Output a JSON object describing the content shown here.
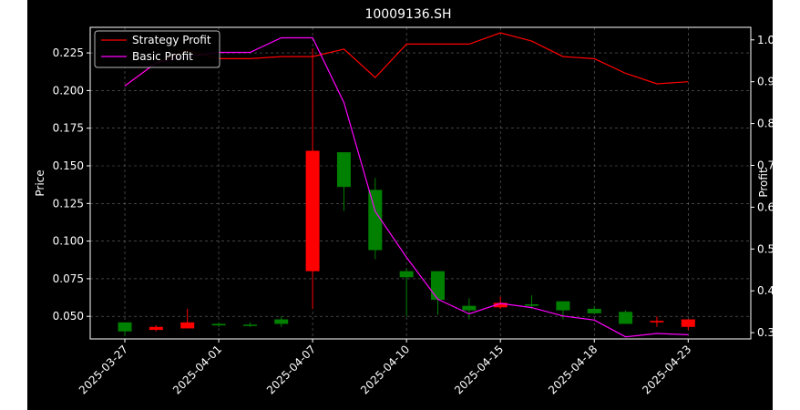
{
  "chart_data": {
    "type": "candlestick+line",
    "title": "10009136.SH",
    "ylabel_left": "Price",
    "ylabel_right": "Profit",
    "xlabel": "",
    "ylim_left": [
      0.035,
      0.242
    ],
    "ylim_right": [
      0.285,
      1.03
    ],
    "grid": true,
    "legend_position": "top-left",
    "x_tick_labels": [
      "2025-03-27",
      "2025-04-01",
      "2025-04-07",
      "2025-04-10",
      "2025-04-15",
      "2025-04-18",
      "2025-04-23"
    ],
    "left_ticks": [
      "0.050",
      "0.075",
      "0.100",
      "0.125",
      "0.150",
      "0.175",
      "0.200",
      "0.225"
    ],
    "right_ticks": [
      "0.3",
      "0.4",
      "0.5",
      "0.6",
      "0.7",
      "0.8",
      "0.9",
      "1.0"
    ],
    "candles": [
      {
        "o": 0.04,
        "h": 0.046,
        "l": 0.037,
        "c": 0.046
      },
      {
        "o": 0.043,
        "h": 0.044,
        "l": 0.04,
        "c": 0.041
      },
      {
        "o": 0.046,
        "h": 0.055,
        "l": 0.043,
        "c": 0.042
      },
      {
        "o": 0.044,
        "h": 0.046,
        "l": 0.043,
        "c": 0.045
      },
      {
        "o": 0.044,
        "h": 0.046,
        "l": 0.043,
        "c": 0.0445
      },
      {
        "o": 0.045,
        "h": 0.05,
        "l": 0.043,
        "c": 0.048
      },
      {
        "o": 0.16,
        "h": 0.228,
        "l": 0.055,
        "c": 0.08
      },
      {
        "o": 0.136,
        "h": 0.158,
        "l": 0.12,
        "c": 0.159
      },
      {
        "o": 0.094,
        "h": 0.142,
        "l": 0.088,
        "c": 0.134
      },
      {
        "o": 0.076,
        "h": 0.082,
        "l": 0.05,
        "c": 0.08
      },
      {
        "o": 0.061,
        "h": 0.08,
        "l": 0.051,
        "c": 0.08
      },
      {
        "o": 0.054,
        "h": 0.062,
        "l": 0.048,
        "c": 0.057
      },
      {
        "o": 0.059,
        "h": 0.063,
        "l": 0.055,
        "c": 0.056
      },
      {
        "o": 0.057,
        "h": 0.064,
        "l": 0.055,
        "c": 0.058
      },
      {
        "o": 0.054,
        "h": 0.06,
        "l": 0.048,
        "c": 0.06
      },
      {
        "o": 0.052,
        "h": 0.057,
        "l": 0.052,
        "c": 0.055
      },
      {
        "o": 0.045,
        "h": 0.054,
        "l": 0.045,
        "c": 0.053
      },
      {
        "o": 0.047,
        "h": 0.05,
        "l": 0.043,
        "c": 0.046
      },
      {
        "o": 0.048,
        "h": 0.048,
        "l": 0.041,
        "c": 0.043
      }
    ],
    "series": [
      {
        "name": "Strategy Profit",
        "color": "#ff0000",
        "values": [
          0.89,
          0.945,
          0.975,
          0.955,
          0.955,
          0.96,
          0.96,
          0.978,
          0.91,
          0.99,
          0.99,
          0.99,
          1.017,
          0.997,
          0.96,
          0.955,
          0.92,
          0.895,
          0.9
        ]
      },
      {
        "name": "Basic Profit",
        "color": "#ff00ff",
        "values": [
          0.89,
          0.945,
          0.96,
          0.97,
          0.97,
          1.005,
          1.005,
          0.85,
          0.59,
          0.48,
          0.38,
          0.345,
          0.37,
          0.36,
          0.34,
          0.33,
          0.29,
          0.298,
          0.295
        ]
      }
    ]
  }
}
